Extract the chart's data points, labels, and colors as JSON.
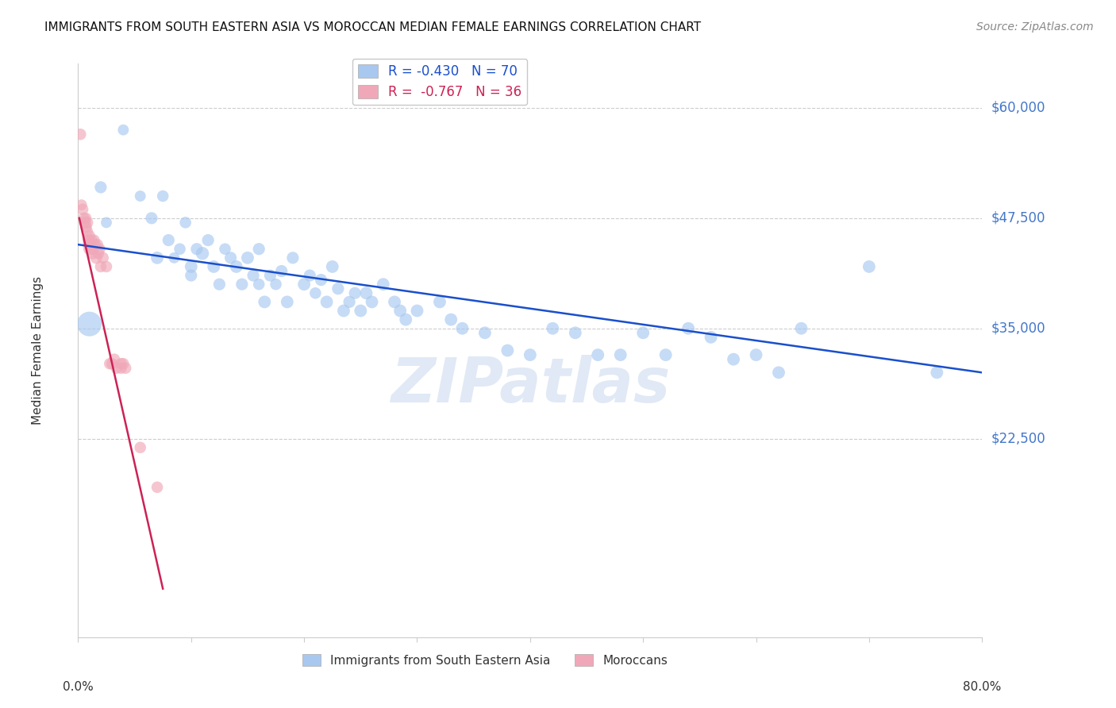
{
  "title": "IMMIGRANTS FROM SOUTH EASTERN ASIA VS MOROCCAN MEDIAN FEMALE EARNINGS CORRELATION CHART",
  "source": "Source: ZipAtlas.com",
  "ylabel": "Median Female Earnings",
  "yticks": [
    0,
    22500,
    35000,
    47500,
    60000
  ],
  "ytick_labels": [
    "",
    "$22,500",
    "$35,000",
    "$47,500",
    "$60,000"
  ],
  "xlim": [
    0.0,
    0.8
  ],
  "ylim": [
    0,
    65000
  ],
  "watermark": "ZIPatlas",
  "blue_color": "#a8c8f0",
  "pink_color": "#f0a8b8",
  "blue_line_color": "#1a4fcc",
  "pink_line_color": "#cc2255",
  "legend_blue_label": "R = -0.430   N = 70",
  "legend_pink_label": "R =  -0.767   N = 36",
  "legend_blue_series": "Immigrants from South Eastern Asia",
  "legend_pink_series": "Moroccans",
  "blue_scatter_x": [
    0.02,
    0.025,
    0.04,
    0.055,
    0.065,
    0.07,
    0.075,
    0.08,
    0.085,
    0.09,
    0.095,
    0.1,
    0.1,
    0.105,
    0.11,
    0.115,
    0.12,
    0.125,
    0.13,
    0.135,
    0.14,
    0.145,
    0.15,
    0.155,
    0.16,
    0.16,
    0.165,
    0.17,
    0.175,
    0.18,
    0.185,
    0.19,
    0.2,
    0.205,
    0.21,
    0.215,
    0.22,
    0.225,
    0.23,
    0.235,
    0.24,
    0.245,
    0.25,
    0.255,
    0.26,
    0.27,
    0.28,
    0.285,
    0.29,
    0.3,
    0.32,
    0.33,
    0.34,
    0.36,
    0.38,
    0.4,
    0.42,
    0.44,
    0.46,
    0.48,
    0.5,
    0.52,
    0.54,
    0.56,
    0.58,
    0.6,
    0.62,
    0.64,
    0.7,
    0.76
  ],
  "blue_scatter_y": [
    51000,
    47000,
    57500,
    50000,
    47500,
    43000,
    50000,
    45000,
    43000,
    44000,
    47000,
    42000,
    41000,
    44000,
    43500,
    45000,
    42000,
    40000,
    44000,
    43000,
    42000,
    40000,
    43000,
    41000,
    44000,
    40000,
    38000,
    41000,
    40000,
    41500,
    38000,
    43000,
    40000,
    41000,
    39000,
    40500,
    38000,
    42000,
    39500,
    37000,
    38000,
    39000,
    37000,
    39000,
    38000,
    40000,
    38000,
    37000,
    36000,
    37000,
    38000,
    36000,
    35000,
    34500,
    32500,
    32000,
    35000,
    34500,
    32000,
    32000,
    34500,
    32000,
    35000,
    34000,
    31500,
    32000,
    30000,
    35000,
    42000,
    30000
  ],
  "blue_scatter_sizes": [
    120,
    100,
    100,
    100,
    120,
    130,
    110,
    120,
    100,
    110,
    110,
    130,
    120,
    120,
    140,
    120,
    130,
    120,
    110,
    120,
    130,
    120,
    130,
    120,
    120,
    110,
    130,
    120,
    110,
    120,
    130,
    120,
    130,
    120,
    110,
    120,
    130,
    130,
    120,
    130,
    120,
    120,
    130,
    130,
    130,
    130,
    130,
    130,
    130,
    130,
    130,
    130,
    130,
    130,
    130,
    130,
    130,
    130,
    130,
    130,
    130,
    130,
    130,
    130,
    130,
    130,
    130,
    130,
    130,
    130
  ],
  "pink_scatter_x": [
    0.002,
    0.003,
    0.004,
    0.005,
    0.006,
    0.007,
    0.007,
    0.008,
    0.008,
    0.009,
    0.009,
    0.01,
    0.01,
    0.011,
    0.012,
    0.013,
    0.013,
    0.014,
    0.015,
    0.016,
    0.017,
    0.018,
    0.019,
    0.02,
    0.022,
    0.025,
    0.028,
    0.03,
    0.032,
    0.034,
    0.038,
    0.038,
    0.04,
    0.042,
    0.055,
    0.07
  ],
  "pink_scatter_y": [
    57000,
    49000,
    48500,
    47500,
    47000,
    47500,
    46500,
    46000,
    47000,
    45000,
    44500,
    45500,
    44000,
    44500,
    45000,
    44000,
    43500,
    45000,
    44500,
    43000,
    44500,
    43500,
    44000,
    42000,
    43000,
    42000,
    31000,
    31000,
    31500,
    30500,
    30500,
    31000,
    31000,
    30500,
    21500,
    17000
  ],
  "pink_scatter_sizes": [
    110,
    100,
    110,
    110,
    120,
    100,
    110,
    110,
    120,
    110,
    100,
    110,
    120,
    110,
    110,
    110,
    120,
    110,
    110,
    120,
    110,
    110,
    110,
    110,
    110,
    110,
    110,
    110,
    110,
    110,
    110,
    110,
    110,
    110,
    110,
    110
  ],
  "blue_line_x": [
    0.0,
    0.8
  ],
  "blue_line_y": [
    44500,
    30000
  ],
  "pink_line_x": [
    0.001,
    0.075
  ],
  "pink_line_y": [
    47500,
    5500
  ]
}
